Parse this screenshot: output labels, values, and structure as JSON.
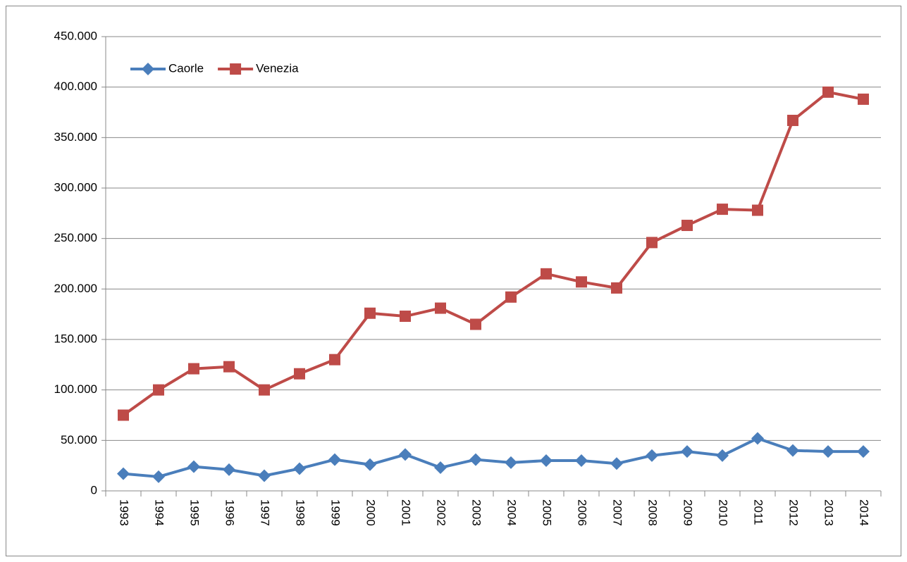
{
  "chart_data": {
    "type": "line",
    "categories": [
      "1993",
      "1994",
      "1995",
      "1996",
      "1997",
      "1998",
      "1999",
      "2000",
      "2001",
      "2002",
      "2003",
      "2004",
      "2005",
      "2006",
      "2007",
      "2008",
      "2009",
      "2010",
      "2011",
      "2012",
      "2013",
      "2014"
    ],
    "series": [
      {
        "name": "Caorle",
        "color": "#4a7ebb",
        "marker": "diamond",
        "values": [
          17000,
          14000,
          24000,
          21000,
          15000,
          22000,
          31000,
          26000,
          36000,
          23000,
          31000,
          28000,
          30000,
          30000,
          27000,
          35000,
          39000,
          35000,
          52000,
          40000,
          39000,
          39000
        ]
      },
      {
        "name": "Venezia",
        "color": "#be4b48",
        "marker": "square",
        "values": [
          75000,
          100000,
          121000,
          123000,
          100000,
          116000,
          130000,
          176000,
          173000,
          181000,
          165000,
          192000,
          215000,
          207000,
          201000,
          246000,
          263000,
          279000,
          278000,
          367000,
          395000,
          388000
        ]
      }
    ],
    "ylim": [
      0,
      450000
    ],
    "yticks": [
      0,
      {
        "value": 50000,
        "label": "50.000"
      },
      {
        "value": 100000,
        "label": "100.000"
      },
      {
        "value": 150000,
        "label": "150.000"
      },
      {
        "value": 200000,
        "label": "200.000"
      },
      {
        "value": 250000,
        "label": "250.000"
      },
      {
        "value": 300000,
        "label": "300.000"
      },
      {
        "value": 350000,
        "label": "350.000"
      },
      {
        "value": 400000,
        "label": "400.000"
      },
      {
        "value": 450000,
        "label": "450.000"
      }
    ],
    "grid": true,
    "legend": "upper left"
  }
}
